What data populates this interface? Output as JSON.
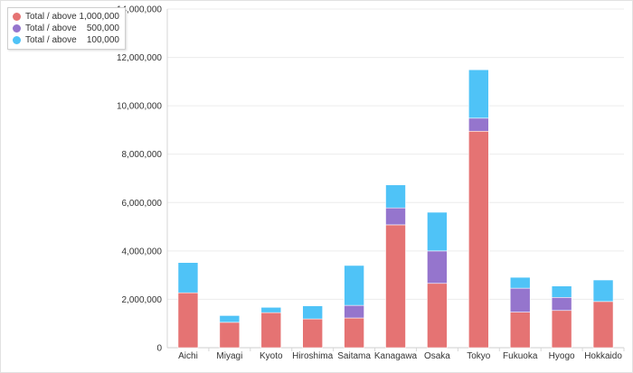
{
  "chart_data": {
    "type": "bar",
    "stacked": true,
    "categories": [
      "Aichi",
      "Miyagi",
      "Kyoto",
      "Hiroshima",
      "Saitama",
      "Kanagawa",
      "Osaka",
      "Tokyo",
      "Fukuoka",
      "Hyogo",
      "Hokkaido"
    ],
    "series": [
      {
        "name": "Total / above 1,000,000",
        "color": "#e57373",
        "values": [
          2270000,
          1050000,
          1450000,
          1190000,
          1230000,
          5080000,
          2660000,
          8950000,
          1470000,
          1540000,
          1910000
        ]
      },
      {
        "name": "Total / above    500,000",
        "color": "#9575cd",
        "values": [
          0,
          0,
          0,
          0,
          520000,
          700000,
          1340000,
          540000,
          990000,
          540000,
          0
        ]
      },
      {
        "name": "Total / above    100,000",
        "color": "#4fc3f7",
        "values": [
          1250000,
          280000,
          220000,
          540000,
          1650000,
          950000,
          1600000,
          2000000,
          450000,
          470000,
          890000
        ]
      }
    ],
    "ylim": [
      0,
      14000000
    ],
    "yticks": [
      0,
      2000000,
      4000000,
      6000000,
      8000000,
      10000000,
      12000000,
      14000000
    ],
    "ytick_labels": [
      "0",
      "2,000,000",
      "4,000,000",
      "6,000,000",
      "8,000,000",
      "10,000,000",
      "12,000,000",
      "14,000,000"
    ],
    "grid": true,
    "legend_position": "top-left"
  }
}
